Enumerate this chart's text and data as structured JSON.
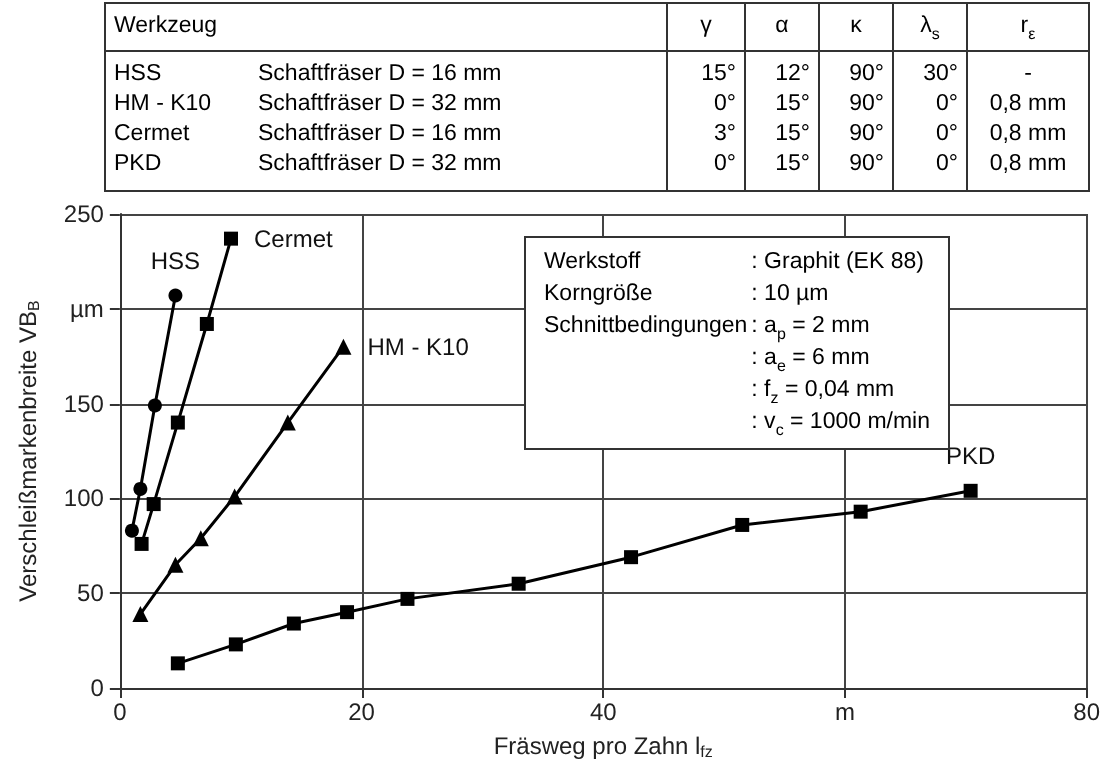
{
  "chart_data": {
    "type": "line",
    "xlabel": "Fräsweg pro Zahn l$_{fz}$",
    "ylabel": "Verschleißmarkenbreite VB$_{B}$",
    "xlim": [
      0,
      80
    ],
    "xticks": [
      0,
      20,
      40,
      {
        "value": 60,
        "label": "m"
      },
      80
    ],
    "ylim": [
      0,
      250
    ],
    "yticks": [
      0,
      50,
      100,
      150,
      {
        "value": 200,
        "label": "µm"
      },
      250
    ],
    "grid": true,
    "legend": false,
    "line_style": "solid",
    "series": [
      {
        "name": "HSS",
        "color": "#000000",
        "marker": "circle",
        "x": [
          1.0,
          1.7,
          2.9,
          4.6
        ],
        "values": [
          83,
          105,
          149,
          207
        ]
      },
      {
        "name": "Cermet",
        "color": "#000000",
        "marker": "square",
        "x": [
          1.8,
          2.8,
          4.8,
          7.2,
          9.2
        ],
        "values": [
          76,
          97,
          140,
          192,
          237
        ]
      },
      {
        "name": "HM - K10",
        "color": "#000000",
        "marker": "triangle",
        "x": [
          1.7,
          4.6,
          6.7,
          9.5,
          13.9,
          18.5
        ],
        "values": [
          39,
          65,
          79,
          101,
          140,
          180
        ]
      },
      {
        "name": "PKD",
        "color": "#000000",
        "marker": "square",
        "x": [
          4.8,
          9.6,
          14.4,
          18.8,
          23.8,
          33.0,
          42.3,
          51.5,
          61.3,
          70.4
        ],
        "values": [
          13,
          23,
          34,
          40,
          47,
          55,
          69,
          86,
          93,
          104
        ]
      }
    ],
    "annotations": [
      "Werkzeug\tγ\tα\tκ\tλ$_{s}$\tr$_{ε}$",
      "HSS\tSchaftfräser D = 16 mm\t15°\t12°\t90°\t30°\t-",
      "HM - K10\tSchaftfräser D = 32 mm\t0°\t15°\t90°\t0°\t0,8 mm",
      "Cermet\tSchaftfräser D = 16 mm\t3°\t15°\t90°\t0°\t0,8 mm",
      "PKD\tSchaftfräser D = 32 mm\t0°\t15°\t90°\t0°\t0,8 mm",
      "Werkstoff\t: Graphit (EK 88)",
      "Korngröße\t: 10 µm",
      "Schnittbedingungen\t: a$_{p}$ = 2 mm",
      "\t: a$_{e}$ = 6 mm",
      "\t: f$_{z}$ = 0,04 mm",
      "\t: v$_{c}$ = 1000 m/min"
    ]
  }
}
